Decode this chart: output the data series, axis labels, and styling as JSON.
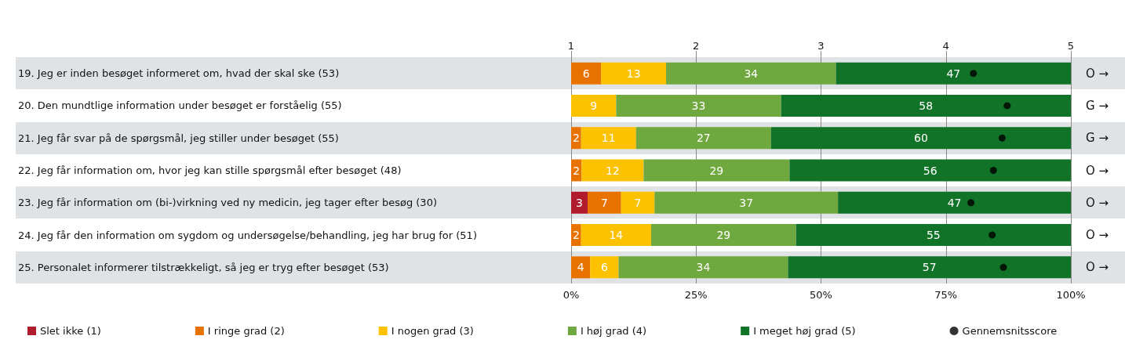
{
  "chart_data": {
    "type": "bar",
    "orientation": "horizontal",
    "stacked": true,
    "categories": [
      "19. Jeg er inden besøget informeret om, hvad der skal ske (53)",
      "20. Den mundtlige information under besøget er forståelig (55)",
      "21. Jeg får svar på de spørgsmål, jeg stiller under besøget (55)",
      "22. Jeg får information om, hvor jeg kan stille spørgsmål efter besøget (48)",
      "23. Jeg får information om (bi-)virkning ved ny medicin, jeg tager efter besøg (30)",
      "24. Jeg får den information om sygdom og undersøgelse/behandling, jeg har brug for (51)",
      "25. Personalet informerer tilstrækkeligt, så jeg er tryg efter besøget (53)"
    ],
    "series": [
      {
        "name": "Slet ikke (1)",
        "color": "#b01c2e",
        "values": [
          0,
          0,
          0,
          0,
          3.3,
          0,
          0
        ],
        "value_labels": [
          null,
          null,
          null,
          null,
          "3",
          null,
          null
        ]
      },
      {
        "name": "I ringe grad (2)",
        "color": "#e87200",
        "values": [
          6,
          0,
          2,
          2.1,
          6.7,
          2,
          3.8
        ],
        "value_labels": [
          "6",
          null,
          "2",
          "2",
          "7",
          "2",
          "4"
        ]
      },
      {
        "name": "I nogen grad (3)",
        "color": "#fcc200",
        "values": [
          13,
          9,
          11,
          12.4,
          6.7,
          14,
          5.7
        ],
        "value_labels": [
          "13",
          "9",
          "11",
          "12",
          "7",
          "14",
          "6"
        ]
      },
      {
        "name": "I høj grad (4)",
        "color": "#6fa83e",
        "values": [
          34,
          33,
          27,
          29.2,
          36.7,
          29,
          33.9
        ],
        "value_labels": [
          "34",
          "33",
          "27",
          "29",
          "37",
          "29",
          "34"
        ]
      },
      {
        "name": "I meget høj grad (5)",
        "color": "#117327",
        "values": [
          47,
          58,
          60,
          56.4,
          46.6,
          55,
          56.6
        ],
        "value_labels": [
          "47",
          "58",
          "60",
          "56",
          "47",
          "55",
          "57"
        ]
      },
      {
        "name": "Gennemsnitsscore",
        "type": "scatter",
        "axis": "x2",
        "color": "#000000",
        "marker": "circle",
        "values": [
          4.22,
          4.49,
          4.45,
          4.38,
          4.2,
          4.37,
          4.46
        ]
      }
    ],
    "xlim": [
      0,
      100
    ],
    "xticks": [
      {
        "value": 0,
        "label": "0%"
      },
      {
        "value": 25,
        "label": "25%"
      },
      {
        "value": 50,
        "label": "50%"
      },
      {
        "value": 75,
        "label": "75%"
      },
      {
        "value": 100,
        "label": "100%"
      }
    ],
    "x2lim": [
      1,
      5
    ],
    "x2ticks": [
      1,
      2,
      3,
      4,
      5
    ],
    "grid": "x",
    "legend": "bottom",
    "annotations": [
      "O →",
      "G →",
      "G →",
      "O →",
      "O →",
      "O →",
      "O →"
    ]
  }
}
